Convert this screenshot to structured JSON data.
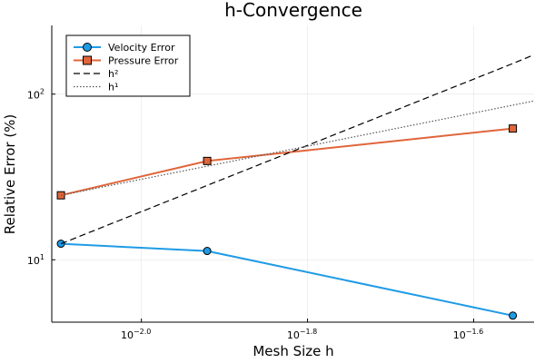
{
  "chart_data": {
    "type": "line",
    "title": "h-Convergence",
    "xlabel": "Mesh Size h",
    "ylabel": "Relative Error (%)",
    "xscale": "log10",
    "yscale": "log10",
    "xlim": [
      0.0078,
      0.0297
    ],
    "ylim": [
      4.2,
      260
    ],
    "x_ticks": [
      {
        "value": 0.01,
        "base": "10",
        "exp": "−2.0"
      },
      {
        "value": 0.015849,
        "base": "10",
        "exp": "−1.8"
      },
      {
        "value": 0.025119,
        "base": "10",
        "exp": "−1.6"
      }
    ],
    "y_ticks": [
      {
        "value": 10,
        "base": "10",
        "exp": "1"
      },
      {
        "value": 100,
        "base": "10",
        "exp": "2"
      }
    ],
    "grid": true,
    "legend_position": "top-left",
    "x": [
      0.008,
      0.012,
      0.028
    ],
    "series": [
      {
        "name": "Velocity Error",
        "values": [
          12.5,
          11.3,
          4.6
        ],
        "color": "#1f9be6",
        "line": "solid",
        "marker": "circle"
      },
      {
        "name": "Pressure Error",
        "values": [
          24.5,
          39.5,
          62.0
        ],
        "color": "#e0653a",
        "line": "solid",
        "marker": "square"
      },
      {
        "name": "h²",
        "values": [
          12.5,
          28.1,
          153.1
        ],
        "color": "#000000",
        "line": "dashed",
        "marker": "none",
        "x": [
          0.008,
          0.012,
          0.028
        ],
        "extend_to": 0.0297,
        "extend_value": 173.0
      },
      {
        "name": "h¹",
        "values": [
          24.5,
          36.75,
          85.75
        ],
        "color": "#555555",
        "line": "dotted",
        "marker": "none",
        "x": [
          0.008,
          0.012,
          0.028
        ],
        "extend_to": 0.0297,
        "extend_value": 91.0
      }
    ]
  }
}
